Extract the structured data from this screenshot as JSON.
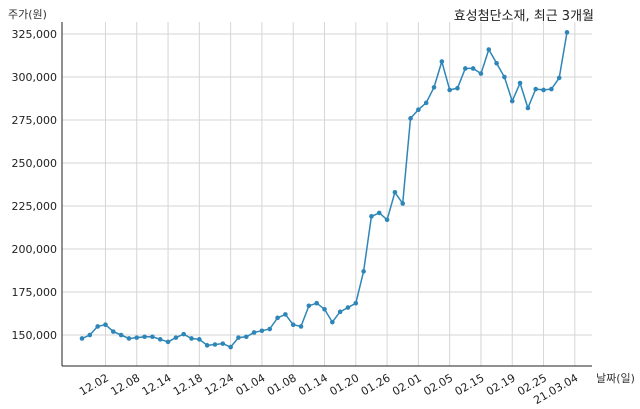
{
  "chart_data": {
    "type": "line",
    "title": "효성첨단소재, 최근 3개월",
    "ylabel": "주가(원)",
    "xlabel": "날짜(일)",
    "ylim": [
      132000,
      332000
    ],
    "yticks": [
      150000,
      175000,
      200000,
      225000,
      250000,
      275000,
      300000,
      325000
    ],
    "ytick_labels": [
      "150,000",
      "175,000",
      "200,000",
      "225,000",
      "250,000",
      "275,000",
      "300,000",
      "325,000"
    ],
    "xtick_labels": [
      "12.02",
      "12.08",
      "12.14",
      "12.18",
      "12.24",
      "01.04",
      "01.08",
      "01.14",
      "01.20",
      "01.26",
      "02.01",
      "02.05",
      "02.15",
      "02.19",
      "02.25",
      "21.03.04"
    ],
    "xtick_indices": [
      3,
      7,
      11,
      15,
      19,
      23,
      27,
      31,
      35,
      39,
      43,
      47,
      51,
      55,
      59,
      63
    ],
    "grid": true,
    "color": "#2e86b8",
    "series": [
      {
        "name": "",
        "values": [
          148000,
          150000,
          155000,
          156000,
          152000,
          150000,
          148000,
          148500,
          149000,
          149000,
          147500,
          146000,
          148500,
          150500,
          148000,
          147500,
          144000,
          144500,
          145000,
          143000,
          148500,
          149000,
          151500,
          152500,
          153500,
          160000,
          162000,
          156000,
          155000,
          167000,
          168500,
          165000,
          157500,
          163500,
          166000,
          168500,
          187000,
          219000,
          221000,
          217000,
          233000,
          226500,
          276000,
          281000,
          285000,
          294000,
          309000,
          292500,
          293500,
          305000,
          305000,
          302000,
          316000,
          308000,
          300000,
          286000,
          296500,
          282000,
          293000,
          292500,
          293000,
          299500,
          326000
        ]
      }
    ]
  }
}
